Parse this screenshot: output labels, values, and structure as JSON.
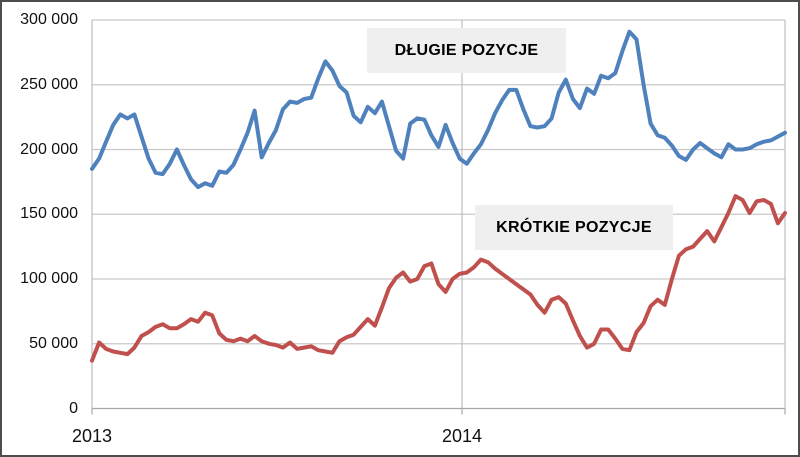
{
  "chart_data": {
    "type": "line",
    "title": "",
    "legend_position": "none",
    "grid": true,
    "y_axis": {
      "min": 0,
      "max": 300000,
      "step": 50000,
      "ticks": [
        "0",
        "50 000",
        "100 000",
        "150 000",
        "200 000",
        "250 000",
        "300 000"
      ]
    },
    "x_axis": {
      "labels": [
        "2013",
        "2014"
      ],
      "note": "weekly data from start of 2013 through ~week 45 of 2014"
    },
    "series": [
      {
        "name": "DŁUGIE POZYCJE",
        "color": "#4F81BD",
        "values": [
          185000,
          193000,
          206000,
          219000,
          227000,
          224000,
          227000,
          210000,
          193000,
          182000,
          181000,
          189000,
          200000,
          188000,
          177000,
          171000,
          174000,
          172000,
          183000,
          182000,
          188000,
          200000,
          213000,
          230000,
          194000,
          205000,
          215000,
          231000,
          237000,
          236000,
          239000,
          240000,
          255000,
          268000,
          261000,
          249000,
          244000,
          226000,
          221000,
          233000,
          228000,
          237000,
          218000,
          199000,
          193000,
          220000,
          224000,
          223000,
          211000,
          202000,
          219000,
          205000,
          193000,
          189000,
          197000,
          204000,
          215000,
          228000,
          238000,
          246000,
          246000,
          231000,
          218000,
          217000,
          218000,
          224000,
          244000,
          254000,
          239000,
          232000,
          247000,
          243000,
          257000,
          255000,
          259000,
          276000,
          291000,
          285000,
          250000,
          220000,
          211000,
          209000,
          203000,
          195000,
          192000,
          200000,
          205000,
          201000,
          197000,
          194000,
          204000,
          200000,
          200000,
          201000,
          204000,
          206000,
          207000,
          210000,
          213000
        ]
      },
      {
        "name": "KRÓTKIE POZYCJE",
        "color": "#C0504D",
        "values": [
          37000,
          51000,
          46000,
          44000,
          43000,
          42000,
          47000,
          56000,
          59000,
          63000,
          65000,
          62000,
          62000,
          65000,
          69000,
          67000,
          74000,
          72000,
          58000,
          53000,
          52000,
          54000,
          52000,
          56000,
          52000,
          50000,
          49000,
          47000,
          51000,
          46000,
          47000,
          48000,
          45000,
          44000,
          43000,
          52000,
          55000,
          57000,
          63000,
          69000,
          64000,
          78000,
          93000,
          101000,
          105000,
          98000,
          100000,
          110000,
          112000,
          96000,
          90000,
          100000,
          104000,
          105000,
          109000,
          115000,
          113000,
          108000,
          104000,
          100000,
          96000,
          92000,
          88000,
          80000,
          74000,
          84000,
          86000,
          81000,
          68000,
          56000,
          47000,
          50000,
          61000,
          61000,
          54000,
          46000,
          45000,
          59000,
          66000,
          79000,
          84000,
          80000,
          100000,
          118000,
          123000,
          125000,
          131000,
          137000,
          129000,
          140000,
          151000,
          164000,
          161000,
          151000,
          160000,
          161000,
          158000,
          143000,
          151000
        ]
      }
    ]
  }
}
